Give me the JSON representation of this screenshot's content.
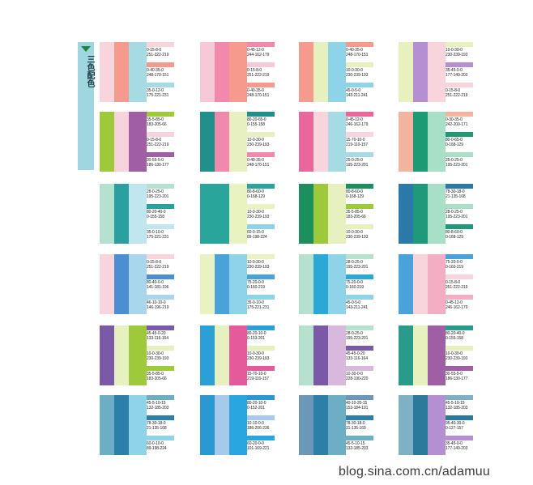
{
  "side_label": "三色配色",
  "watermark": "blog.sina.com.cn/adamuu",
  "cards": [
    {
      "stripes": [
        "#f8d5dc",
        "#f59a8c",
        "#a7dbe4"
      ],
      "entries": [
        {
          "color": "#f8d5dc",
          "line1": "0-15-8-0",
          "line2": "251-222-219"
        },
        {
          "color": "#f59a8c",
          "line1": "0-40-35-0",
          "line2": "248-170-151"
        },
        {
          "color": "#a7dbe4",
          "line1": "35-0-12-0",
          "line2": "175-221-231"
        }
      ]
    },
    {
      "stripes": [
        "#f7c9d6",
        "#f189ad",
        "#f59a8c"
      ],
      "entries": [
        {
          "color": "#f189ad",
          "line1": "0-45-12-0",
          "line2": "244-162-179"
        },
        {
          "color": "#f7c9d6",
          "line1": "0-15-8-0",
          "line2": "251-222-219"
        },
        {
          "color": "#f59a8c",
          "line1": "0-40-35-0",
          "line2": "248-170-151"
        }
      ]
    },
    {
      "stripes": [
        "#f59a8c",
        "#e6f1bf",
        "#8fd3e8"
      ],
      "entries": [
        {
          "color": "#f59a8c",
          "line1": "0-40-35-0",
          "line2": "248-170-151"
        },
        {
          "color": "#e6f1bf",
          "line1": "10-0-30-0",
          "line2": "230-239-193"
        },
        {
          "color": "#8fd3e8",
          "line1": "45-0-5-0",
          "line2": "143-211-241"
        }
      ]
    },
    {
      "stripes": [
        "#e6f1bf",
        "#b48fd1",
        "#f8d5dc"
      ],
      "entries": [
        {
          "color": "#e6f1bf",
          "line1": "10-0-30-0",
          "line2": "230-239-193"
        },
        {
          "color": "#b48fd1",
          "line1": "35-45-0-0",
          "line2": "177-149-203"
        },
        {
          "color": "#f8d5dc",
          "line1": "0-15-8-0",
          "line2": "251-222-219"
        }
      ]
    },
    {
      "stripes": [
        "#9ec93a",
        "#f7d3dc",
        "#a05ea4"
      ],
      "entries": [
        {
          "color": "#9ec93a",
          "line1": "35-5-85-0",
          "line2": "183-205-66"
        },
        {
          "color": "#f7d3dc",
          "line1": "0-15-8-0",
          "line2": "251-222-219"
        },
        {
          "color": "#a05ea4",
          "line1": "30-55-5-0",
          "line2": "186-130-177"
        }
      ]
    },
    {
      "stripes": [
        "#22908a",
        "#f189ad",
        "#e6f1bf"
      ],
      "entries": [
        {
          "color": "#22908a",
          "line1": "80-20-65-0",
          "line2": "0-155-158"
        },
        {
          "color": "#e6f1bf",
          "line1": "10-0-30-0",
          "line2": "230-239-193"
        },
        {
          "color": "#f189ad",
          "line1": "0-40-35-0",
          "line2": "248-170-151"
        }
      ]
    },
    {
      "stripes": [
        "#e8689c",
        "#f8d5dc",
        "#a7dbe4"
      ],
      "entries": [
        {
          "color": "#e8689c",
          "line1": "0-45-12-0",
          "line2": "246-162-179"
        },
        {
          "color": "#f8d5dc",
          "line1": "15-70-10-0",
          "line2": "219-110-157"
        },
        {
          "color": "#a7dbe4",
          "line1": "25-0-25-0",
          "line2": "195-223-201"
        }
      ]
    },
    {
      "stripes": [
        "#f3b49f",
        "#1c9a73",
        "#a7dfc7"
      ],
      "entries": [
        {
          "color": "#f3b49f",
          "line1": "0-30-35-0",
          "line2": "242-200-171"
        },
        {
          "color": "#1c9a73",
          "line1": "80-0-65-0",
          "line2": "0-168-129"
        },
        {
          "color": "#a7dfc7",
          "line1": "25-0-25-0",
          "line2": "195-223-201"
        }
      ]
    },
    {
      "stripes": [
        "#b6e1cf",
        "#2aa0a0",
        "#c2e6ef"
      ],
      "entries": [
        {
          "color": "#b6e1cf",
          "line1": "28-0-25-0",
          "line2": "195-223-201"
        },
        {
          "color": "#2aa0a0",
          "line1": "80-20-40-0",
          "line2": "0-155-158"
        },
        {
          "color": "#c2e6ef",
          "line1": "35-0-10-0",
          "line2": "175-221-231"
        }
      ]
    },
    {
      "stripes": [
        "#2aa59b",
        "#2aa59b",
        "#e9f3c1"
      ],
      "entries": [
        {
          "color": "#2aa59b",
          "line1": "80-8-60-0",
          "line2": "0-168-129"
        },
        {
          "color": "#e9f3c1",
          "line1": "10-0-30-0",
          "line2": "230-239-193"
        },
        {
          "color": "#8fd3e8",
          "line1": "60-0-15-0",
          "line2": "89-198-224"
        }
      ]
    },
    {
      "stripes": [
        "#1c8f5e",
        "#9ec93a",
        "#e6f1bf"
      ],
      "entries": [
        {
          "color": "#1c8f5e",
          "line1": "80-8-60-0",
          "line2": "0-168-129"
        },
        {
          "color": "#9ec93a",
          "line1": "35-5-85-0",
          "line2": "183-205-66"
        },
        {
          "color": "#e6f1bf",
          "line1": "10-0-30-0",
          "line2": "230-239-193"
        }
      ]
    },
    {
      "stripes": [
        "#2b79a8",
        "#1e9a7a",
        "#a7dfc7"
      ],
      "entries": [
        {
          "color": "#2b79a8",
          "line1": "78-30-18-0",
          "line2": "21-135-168"
        },
        {
          "color": "#a7dfc7",
          "line1": "28-0-25-0",
          "line2": "195-223-201"
        },
        {
          "color": "#1e9a7a",
          "line1": "80-8-60-0",
          "line2": "0-168-129"
        }
      ]
    },
    {
      "stripes": [
        "#f8d5dc",
        "#4c8fd0",
        "#a9d6ed"
      ],
      "entries": [
        {
          "color": "#f8d5dc",
          "line1": "0-15-8-0",
          "line2": "251-222-219"
        },
        {
          "color": "#4c8fd0",
          "line1": "80-40-0-0",
          "line2": "141-181-196"
        },
        {
          "color": "#a9d6ed",
          "line1": "46-10-10-0",
          "line2": "146-196-219"
        }
      ]
    },
    {
      "stripes": [
        "#e9f3c1",
        "#4aa2d8",
        "#8fd3e8"
      ],
      "entries": [
        {
          "color": "#e9f3c1",
          "line1": "10-0-30-0",
          "line2": "230-239-193"
        },
        {
          "color": "#4aa2d8",
          "line1": "75-20-0-0",
          "line2": "0-160-219"
        },
        {
          "color": "#8fd3e8",
          "line1": "35-0-10-0",
          "line2": "175-221-231"
        }
      ]
    },
    {
      "stripes": [
        "#b6e1cf",
        "#2aa9d6",
        "#8fd3e8"
      ],
      "entries": [
        {
          "color": "#b6e1cf",
          "line1": "28-0-25-0",
          "line2": "195-223-201"
        },
        {
          "color": "#2aa9d6",
          "line1": "75-20-0-0",
          "line2": "0-160-219"
        },
        {
          "color": "#8fd3e8",
          "line1": "45-0-5-0",
          "line2": "143-211-241"
        }
      ]
    },
    {
      "stripes": [
        "#4aa2d8",
        "#f8d5dc",
        "#f3aec4"
      ],
      "entries": [
        {
          "color": "#4aa2d8",
          "line1": "75-20-0-0",
          "line2": "0-160-219"
        },
        {
          "color": "#f8d5dc",
          "line1": "0-15-8-0",
          "line2": "251-222-219"
        },
        {
          "color": "#f3aec4",
          "line1": "0-45-12-0",
          "line2": "246-162-179"
        }
      ]
    },
    {
      "stripes": [
        "#7a5aa6",
        "#e6f1bf",
        "#9ec93a"
      ],
      "entries": [
        {
          "color": "#7a5aa6",
          "line1": "45-45-0-20",
          "line2": "133-116-164"
        },
        {
          "color": "#e6f1bf",
          "line1": "10-0-30-0",
          "line2": "230-239-193"
        },
        {
          "color": "#9ec93a",
          "line1": "35-5-85-0",
          "line2": "183-205-66"
        }
      ]
    },
    {
      "stripes": [
        "#2aa0d6",
        "#e6f1bf",
        "#e45a9a"
      ],
      "entries": [
        {
          "color": "#2aa0d6",
          "line1": "80-20-10-0",
          "line2": "0-153-201"
        },
        {
          "color": "#e6f1bf",
          "line1": "10-0-30-0",
          "line2": "230-239-193"
        },
        {
          "color": "#e45a9a",
          "line1": "15-70-10-0",
          "line2": "219-110-157"
        }
      ]
    },
    {
      "stripes": [
        "#b6e1cf",
        "#7a5aa6",
        "#d8b8dc"
      ],
      "entries": [
        {
          "color": "#b6e1cf",
          "line1": "28-0-25-0",
          "line2": "195-223-201"
        },
        {
          "color": "#7a5aa6",
          "line1": "45-45-0-20",
          "line2": "133-116-164"
        },
        {
          "color": "#d8b8dc",
          "line1": "10-30-0-0",
          "line2": "228-190-220"
        }
      ]
    },
    {
      "stripes": [
        "#2a9a8c",
        "#e6f1bf",
        "#a05ea4"
      ],
      "entries": [
        {
          "color": "#2a9a8c",
          "line1": "80-20-40-0",
          "line2": "0-155-158"
        },
        {
          "color": "#e6f1bf",
          "line1": "10-0-30-0",
          "line2": "230-239-193"
        },
        {
          "color": "#a05ea4",
          "line1": "30-55-5-0",
          "line2": "186-130-177"
        }
      ]
    },
    {
      "stripes": [
        "#6eaec5",
        "#2c7fa6",
        "#8fd3e8"
      ],
      "entries": [
        {
          "color": "#6eaec5",
          "line1": "45-5-10-15",
          "line2": "132-185-203"
        },
        {
          "color": "#2c7fa6",
          "line1": "78-30-18-0",
          "line2": "21-135-168"
        },
        {
          "color": "#8fd3e8",
          "line1": "60-0-10-0",
          "line2": "89-198-224"
        }
      ]
    },
    {
      "stripes": [
        "#2a99d3",
        "#a7c9ea",
        "#2aa6de"
      ],
      "entries": [
        {
          "color": "#2a99d3",
          "line1": "80-20-10-0",
          "line2": "0-152-201"
        },
        {
          "color": "#a7c9ea",
          "line1": "10-10-0-0",
          "line2": "186-206-236"
        },
        {
          "color": "#2aa6de",
          "line1": "60-20-0-0",
          "line2": "101-169-221"
        }
      ]
    },
    {
      "stripes": [
        "#6d97b8",
        "#2c7fa6",
        "#6eaec5"
      ],
      "entries": [
        {
          "color": "#6d97b8",
          "line1": "40-10-20-15",
          "line2": "153-184-191"
        },
        {
          "color": "#2c7fa6",
          "line1": "78-30-18-0",
          "line2": "21-135-169"
        },
        {
          "color": "#6eaec5",
          "line1": "45-5-10-15",
          "line2": "132-185-203"
        }
      ]
    },
    {
      "stripes": [
        "#7fb1c5",
        "#2b7a9c",
        "#b48fd1"
      ],
      "entries": [
        {
          "color": "#7fb1c5",
          "line1": "45-5-10-15",
          "line2": "132-185-203"
        },
        {
          "color": "#2b7a9c",
          "line1": "95-40-30-0",
          "line2": "0-127-157"
        },
        {
          "color": "#b48fd1",
          "line1": "35-45-0-0",
          "line2": "177-149-203"
        }
      ]
    }
  ]
}
